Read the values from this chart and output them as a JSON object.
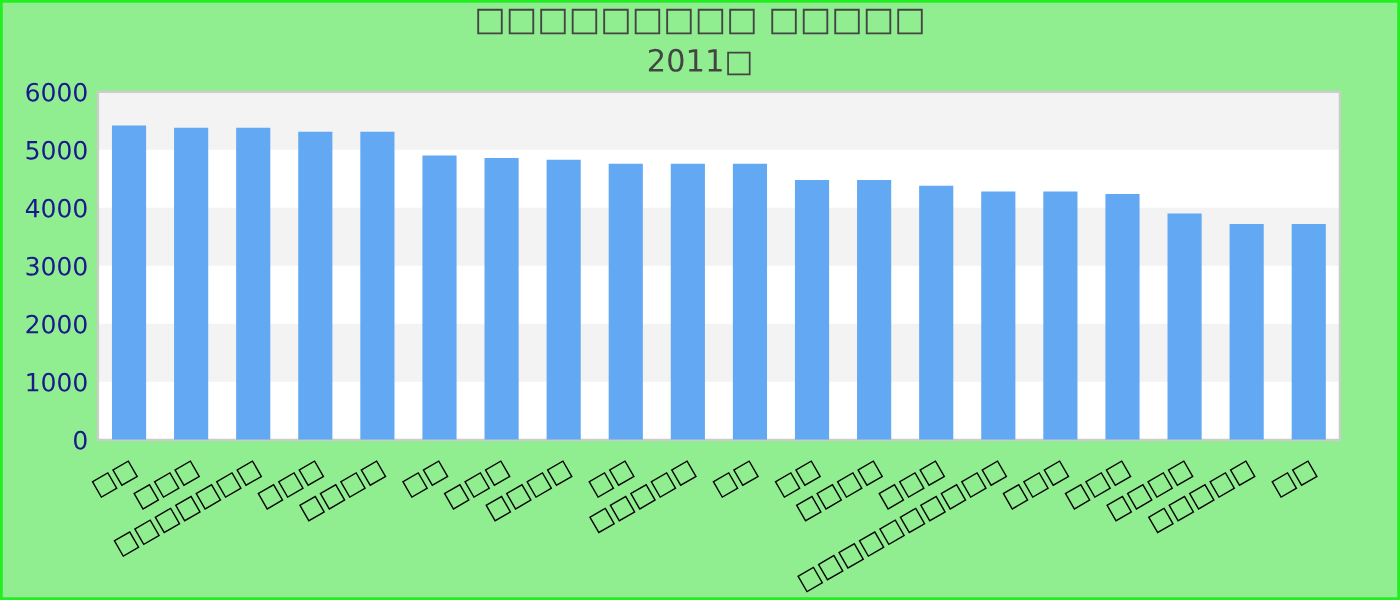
{
  "chart_data": {
    "type": "bar",
    "title": "□□□□□□□□□ □□□□□",
    "subtitle": "2011□",
    "categories": [
      "□□",
      "□□□",
      "□□□□□□□",
      "□□□",
      "□□□□",
      "□□",
      "□□□",
      "□□□□",
      "□□",
      "□□□□□",
      "□□",
      "□□",
      "□□□□",
      "□□□",
      "□□□□□□□□□□",
      "□□□",
      "□□□",
      "□□□□",
      "□□□□□",
      "□□"
    ],
    "values": [
      5420,
      5380,
      5380,
      5310,
      5310,
      4900,
      4860,
      4830,
      4760,
      4760,
      4760,
      4480,
      4480,
      4380,
      4280,
      4280,
      4240,
      3900,
      3720,
      3720
    ],
    "color": "#62a8f2",
    "ylim": [
      0,
      6000
    ],
    "yticks": [
      0,
      1000,
      2000,
      3000,
      4000,
      5000,
      6000
    ],
    "legend": false,
    "bands": [
      {
        "axis": "y",
        "from": 5000,
        "to": 6000,
        "color": "#f3f3f3"
      },
      {
        "axis": "y",
        "from": 3000,
        "to": 4000,
        "color": "#f3f3f3"
      },
      {
        "axis": "y",
        "from": 1000,
        "to": 2000,
        "color": "#f3f3f3"
      }
    ]
  }
}
